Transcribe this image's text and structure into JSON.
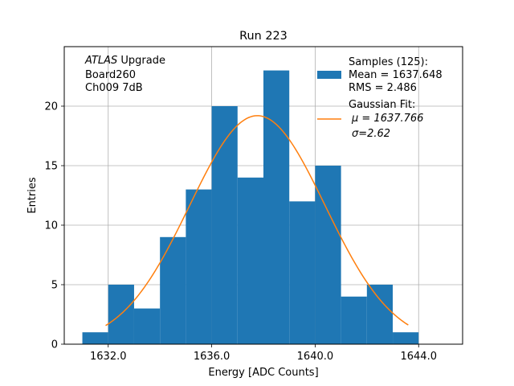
{
  "chart_data": {
    "type": "bar",
    "title": "Run 223",
    "xlabel": "Energy [ADC Counts]",
    "ylabel": "Entries",
    "xlim": [
      1630.3,
      1645.7
    ],
    "ylim": [
      0,
      25
    ],
    "grid": true,
    "xticks": [
      1632.0,
      1636.0,
      1640.0,
      1644.0
    ],
    "xtick_labels": [
      "1632.0",
      "1636.0",
      "1640.0",
      "1644.0"
    ],
    "yticks": [
      0,
      5,
      10,
      15,
      20
    ],
    "ytick_labels": [
      "0",
      "5",
      "10",
      "15",
      "20"
    ],
    "bin_edges": [
      1631,
      1632,
      1633,
      1634,
      1635,
      1636,
      1637,
      1638,
      1639,
      1640,
      1641,
      1642,
      1643,
      1644
    ],
    "counts": [
      1,
      5,
      3,
      9,
      13,
      20,
      14,
      23,
      12,
      15,
      4,
      5,
      1
    ],
    "bar_color": "#1f77b4",
    "fit": {
      "mu": 1637.766,
      "sigma": 2.62,
      "peak": 19.2,
      "x_range": [
        1631.9,
        1643.6
      ],
      "color": "#ff7f0e"
    },
    "annotation": {
      "lines": [
        {
          "italic": "ATLAS",
          "text": " Upgrade"
        },
        {
          "italic": "",
          "text": " Board260"
        },
        {
          "italic": "",
          "text": " Ch009 7dB"
        }
      ]
    },
    "legend": {
      "position": "top-right",
      "samples_label": [
        "Samples (125):",
        " Mean = 1637.648",
        " RMS = 2.486"
      ],
      "fit_label": [
        "Gaussian Fit:",
        "μ = 1637.766",
        "σ=2.62"
      ]
    }
  }
}
